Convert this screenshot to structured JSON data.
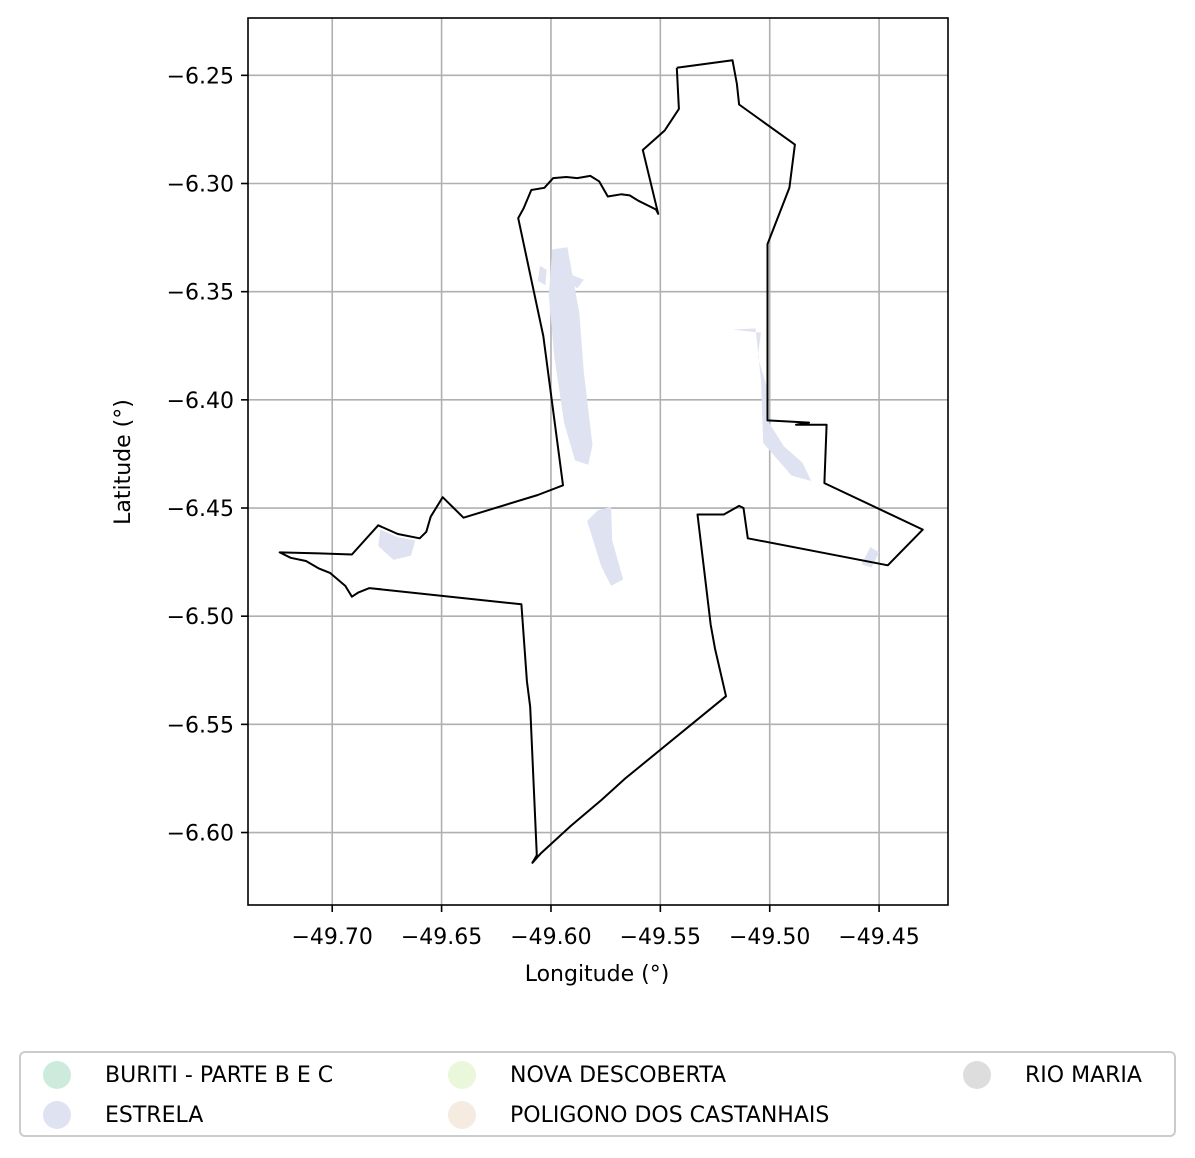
{
  "chart_data": {
    "type": "map",
    "xlabel": "Longitude (°)",
    "ylabel": "Latitude (°)",
    "xlim": [
      -49.7385,
      -49.4185
    ],
    "ylim": [
      -6.6335,
      -6.2235
    ],
    "x_ticks": [
      -49.7,
      -49.65,
      -49.6,
      -49.55,
      -49.5,
      -49.45
    ],
    "x_tick_labels": [
      "−49.70",
      "−49.65",
      "−49.60",
      "−49.55",
      "−49.50",
      "−49.45"
    ],
    "y_ticks": [
      -6.25,
      -6.3,
      -6.35,
      -6.4,
      -6.45,
      -6.5,
      -6.55,
      -6.6
    ],
    "y_tick_labels": [
      "−6.25",
      "−6.30",
      "−6.35",
      "−6.40",
      "−6.45",
      "−6.50",
      "−6.55",
      "−6.60"
    ],
    "grid": true,
    "legend_position": "bottom",
    "legend": [
      {
        "label": "BURITI - PARTE B E C",
        "color": "#cdebdc"
      },
      {
        "label": "ESTRELA",
        "color": "#dfe3f1"
      },
      {
        "label": "NOVA DESCOBERTA",
        "color": "#eaf7db"
      },
      {
        "label": "POLIGONO DOS CASTANHAIS",
        "color": "#f5ebe0"
      },
      {
        "label": "RIO MARIA",
        "color": "#dddddd"
      }
    ],
    "boundary_color": "#000000",
    "boundary": [
      [
        -49.5425,
        -6.2465
      ],
      [
        -49.517,
        -6.243
      ],
      [
        -49.515,
        -6.254
      ],
      [
        -49.514,
        -6.2635
      ],
      [
        -49.4885,
        -6.282
      ],
      [
        -49.49,
        -6.294
      ],
      [
        -49.491,
        -6.302
      ],
      [
        -49.501,
        -6.328
      ],
      [
        -49.501,
        -6.4095
      ],
      [
        -49.482,
        -6.4105
      ],
      [
        -49.488,
        -6.4115
      ],
      [
        -49.474,
        -6.4115
      ],
      [
        -49.475,
        -6.4385
      ],
      [
        -49.43,
        -6.46
      ],
      [
        -49.446,
        -6.4765
      ],
      [
        -49.51,
        -6.464
      ],
      [
        -49.512,
        -6.45
      ],
      [
        -49.514,
        -6.449
      ],
      [
        -49.521,
        -6.453
      ],
      [
        -49.533,
        -6.453
      ],
      [
        -49.527,
        -6.504
      ],
      [
        -49.525,
        -6.515
      ],
      [
        -49.52,
        -6.537
      ],
      [
        -49.566,
        -6.575
      ],
      [
        -49.577,
        -6.585
      ],
      [
        -49.591,
        -6.597
      ],
      [
        -49.6045,
        -6.6095
      ],
      [
        -49.6085,
        -6.614
      ],
      [
        -49.6065,
        -6.6105
      ],
      [
        -49.6095,
        -6.542
      ],
      [
        -49.611,
        -6.53
      ],
      [
        -49.6135,
        -6.4945
      ],
      [
        -49.683,
        -6.487
      ],
      [
        -49.688,
        -6.489
      ],
      [
        -49.691,
        -6.491
      ],
      [
        -49.694,
        -6.486
      ],
      [
        -49.701,
        -6.48
      ],
      [
        -49.706,
        -6.478
      ],
      [
        -49.712,
        -6.4745
      ],
      [
        -49.719,
        -6.473
      ],
      [
        -49.724,
        -6.4705
      ],
      [
        -49.706,
        -6.471
      ],
      [
        -49.691,
        -6.4715
      ],
      [
        -49.679,
        -6.458
      ],
      [
        -49.67,
        -6.462
      ],
      [
        -49.66,
        -6.464
      ],
      [
        -49.657,
        -6.461
      ],
      [
        -49.655,
        -6.454
      ],
      [
        -49.6495,
        -6.445
      ],
      [
        -49.64,
        -6.4545
      ],
      [
        -49.606,
        -6.444
      ],
      [
        -49.5945,
        -6.4395
      ],
      [
        -49.6035,
        -6.3705
      ],
      [
        -49.615,
        -6.316
      ],
      [
        -49.6125,
        -6.3115
      ],
      [
        -49.609,
        -6.303
      ],
      [
        -49.603,
        -6.302
      ],
      [
        -49.599,
        -6.2975
      ],
      [
        -49.593,
        -6.297
      ],
      [
        -49.588,
        -6.2975
      ],
      [
        -49.582,
        -6.2965
      ],
      [
        -49.578,
        -6.299
      ],
      [
        -49.574,
        -6.306
      ],
      [
        -49.568,
        -6.305
      ],
      [
        -49.564,
        -6.3055
      ],
      [
        -49.56,
        -6.308
      ],
      [
        -49.552,
        -6.312
      ],
      [
        -49.551,
        -6.314
      ],
      [
        -49.558,
        -6.2845
      ],
      [
        -49.548,
        -6.2755
      ],
      [
        -49.5415,
        -6.2655
      ],
      [
        -49.5425,
        -6.2465
      ]
    ],
    "regions": [
      {
        "name": "ESTRELA",
        "color": "#dfe3f1",
        "polygons": [
          [
            [
              -49.5995,
              -6.3305
            ],
            [
              -49.5925,
              -6.3295
            ],
            [
              -49.587,
              -6.36
            ],
            [
              -49.585,
              -6.387
            ],
            [
              -49.581,
              -6.421
            ],
            [
              -49.583,
              -6.43
            ],
            [
              -49.589,
              -6.428
            ],
            [
              -49.594,
              -6.4105
            ],
            [
              -49.5985,
              -6.38
            ],
            [
              -49.601,
              -6.352
            ],
            [
              -49.5995,
              -6.3305
            ]
          ],
          [
            [
              -49.5785,
              -6.451
            ],
            [
              -49.5725,
              -6.4495
            ],
            [
              -49.572,
              -6.465
            ],
            [
              -49.567,
              -6.483
            ],
            [
              -49.5725,
              -6.486
            ],
            [
              -49.577,
              -6.477
            ],
            [
              -49.5835,
              -6.456
            ],
            [
              -49.5785,
              -6.451
            ]
          ],
          [
            [
              -49.59,
              -6.3425
            ],
            [
              -49.5975,
              -6.3405
            ],
            [
              -49.588,
              -6.3485
            ],
            [
              -49.585,
              -6.3445
            ],
            [
              -49.59,
              -6.3425
            ]
          ],
          [
            [
              -49.517,
              -6.3675
            ],
            [
              -49.5065,
              -6.367
            ],
            [
              -49.504,
              -6.391
            ],
            [
              -49.503,
              -6.42
            ],
            [
              -49.49,
              -6.435
            ],
            [
              -49.481,
              -6.4375
            ],
            [
              -49.485,
              -6.429
            ],
            [
              -49.4935,
              -6.4215
            ],
            [
              -49.501,
              -6.4095
            ],
            [
              -49.501,
              -6.395
            ],
            [
              -49.5055,
              -6.38
            ],
            [
              -49.504,
              -6.369
            ],
            [
              -49.517,
              -6.3675
            ]
          ],
          [
            [
              -49.678,
              -6.46
            ],
            [
              -49.67,
              -6.4635
            ],
            [
              -49.662,
              -6.465
            ],
            [
              -49.664,
              -6.472
            ],
            [
              -49.672,
              -6.474
            ],
            [
              -49.679,
              -6.4675
            ],
            [
              -49.678,
              -6.46
            ]
          ],
          [
            [
              -49.602,
              -6.34
            ],
            [
              -49.605,
              -6.338
            ],
            [
              -49.606,
              -6.345
            ],
            [
              -49.6025,
              -6.347
            ],
            [
              -49.602,
              -6.34
            ]
          ],
          [
            [
              -49.454,
              -6.468
            ],
            [
              -49.45,
              -6.4705
            ],
            [
              -49.4535,
              -6.4775
            ],
            [
              -49.458,
              -6.476
            ],
            [
              -49.454,
              -6.468
            ]
          ]
        ]
      }
    ]
  }
}
